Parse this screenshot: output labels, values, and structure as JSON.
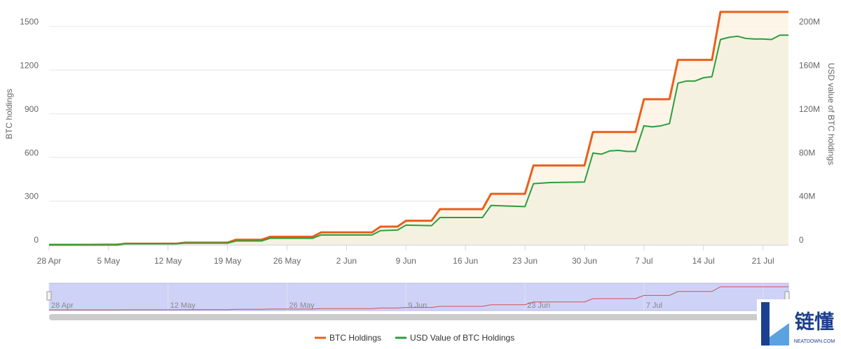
{
  "chart_data": {
    "type": "line",
    "step_fill": true,
    "x": [
      "28 Apr",
      "6 May",
      "7 May",
      "13 May",
      "14 May",
      "19 May",
      "20 May",
      "23 May",
      "24 May",
      "29 May",
      "30 May",
      "5 Jun",
      "6 Jun",
      "8 Jun",
      "9 Jun",
      "12 Jun",
      "13 Jun",
      "18 Jun",
      "19 Jun",
      "23 Jun",
      "24 Jun",
      "26 Jun",
      "30 Jun",
      "1 Jul",
      "2 Jul",
      "3 Jul",
      "4 Jul",
      "5 Jul",
      "6 Jul",
      "7 Jul",
      "8 Jul",
      "9 Jul",
      "10 Jul",
      "11 Jul",
      "12 Jul",
      "13 Jul",
      "14 Jul",
      "15 Jul",
      "16 Jul",
      "17 Jul",
      "18 Jul",
      "19 Jul",
      "20 Jul",
      "21 Jul",
      "22 Jul",
      "23 Jul",
      "24 Jul"
    ],
    "xlim": [
      "28 Apr",
      "24 Jul"
    ],
    "xticks": [
      "28 Apr",
      "5 May",
      "12 May",
      "19 May",
      "26 May",
      "2 Jun",
      "9 Jun",
      "16 Jun",
      "23 Jun",
      "30 Jun",
      "7 Jul",
      "14 Jul",
      "21 Jul"
    ],
    "series": [
      {
        "name": "BTC Holdings",
        "color": "#e8601c",
        "fill": "#fdf1e2",
        "axis": "y",
        "values": [
          0,
          0,
          8,
          8,
          15,
          15,
          35,
          35,
          55,
          55,
          85,
          85,
          125,
          125,
          165,
          165,
          245,
          245,
          350,
          350,
          545,
          545,
          545,
          775,
          775,
          775,
          775,
          775,
          775,
          1000,
          1000,
          1000,
          1000,
          1270,
          1270,
          1270,
          1270,
          1270,
          1600,
          1600,
          1600,
          1600,
          1600,
          1600,
          1600,
          1600,
          1600
        ]
      },
      {
        "name": "USD Value of BTC Holdings",
        "color": "#2c9e3c",
        "fill": "#f1efdc",
        "axis": "y2",
        "values": [
          0,
          0.5,
          1,
          1,
          1.5,
          1.5,
          3.5,
          3.5,
          6,
          6,
          9,
          9,
          13,
          13.5,
          18,
          17.5,
          25,
          25,
          36,
          35,
          56,
          57,
          57.5,
          84,
          83,
          86,
          86.5,
          85.5,
          85.5,
          109,
          108,
          109,
          111,
          148,
          150,
          150,
          153,
          154,
          188,
          190,
          191,
          189,
          188.5,
          188.5,
          188,
          192,
          192
        ]
      }
    ],
    "ylabel": "BTC holdings",
    "ylim": [
      0,
      1600
    ],
    "yticks": [
      0,
      300,
      600,
      900,
      1200,
      1500
    ],
    "y2label": "USD value of BTC holdings",
    "y2lim": [
      0,
      213.3
    ],
    "y2ticks": [
      {
        "value": 0,
        "label": "0"
      },
      {
        "value": 40,
        "label": "40M"
      },
      {
        "value": 80,
        "label": "80M"
      },
      {
        "value": 120,
        "label": "120M"
      },
      {
        "value": 160,
        "label": "160M"
      },
      {
        "value": 200,
        "label": "200M"
      }
    ],
    "grid": true,
    "legend": "bottom",
    "navigator_color": "#cfd2f7"
  },
  "watermark": {
    "text": "链懂",
    "subtext": "NEATDOWN.COM"
  }
}
